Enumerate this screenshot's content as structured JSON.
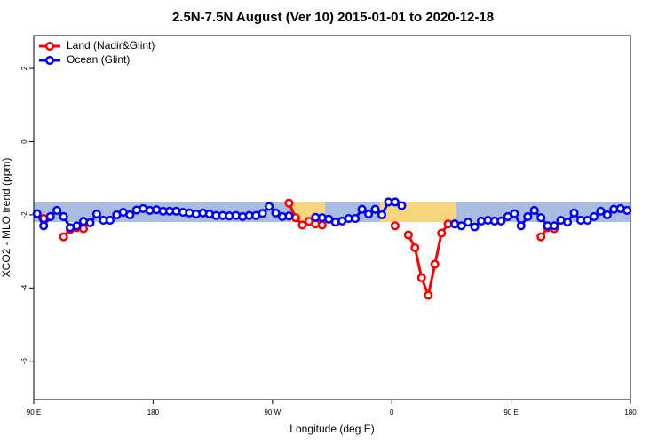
{
  "chart_data": {
    "type": "line",
    "title": "2.5N-7.5N August (Ver 10)   2015-01-01 to 2020-12-18",
    "x_label": "Longitude (deg E)",
    "y_label": "XCO2 - MLO trend (ppm)",
    "legend": "top-left",
    "xlim": [
      90,
      540
    ],
    "xticks": [
      {
        "value": 90,
        "label": "90 E"
      },
      180,
      {
        "value": 270,
        "label": "90 W"
      },
      {
        "value": 360,
        "label": "0"
      },
      {
        "value": 450,
        "label": "90 E"
      },
      {
        "value": 540,
        "label": "180"
      }
    ],
    "ylim": [
      -7.05,
      2.9
    ],
    "yticks": [
      -6,
      -4,
      -2,
      0,
      2
    ],
    "x": [
      92.5,
      97.5,
      102.5,
      107.5,
      112.5,
      117.5,
      122.5,
      127.5,
      132.5,
      137.5,
      142.5,
      147.5,
      152.5,
      157.5,
      162.5,
      167.5,
      172.5,
      177.5,
      182.5,
      187.5,
      192.5,
      197.5,
      202.5,
      207.5,
      212.5,
      217.5,
      222.5,
      227.5,
      232.5,
      237.5,
      242.5,
      247.5,
      252.5,
      257.5,
      262.5,
      267.5,
      272.5,
      277.5,
      282.5,
      287.5,
      292.5,
      297.5,
      302.5,
      307.5,
      312.5,
      317.5,
      322.5,
      327.5,
      332.5,
      337.5,
      342.5,
      347.5,
      352.5,
      357.5,
      362.5,
      367.5,
      372.5,
      377.5,
      382.5,
      387.5,
      392.5,
      397.5,
      402.5,
      407.5,
      412.5,
      417.5,
      422.5,
      427.5,
      432.5,
      437.5,
      442.5,
      447.5,
      452.5,
      457.5,
      462.5,
      467.5,
      472.5,
      477.5,
      482.5,
      487.5,
      492.5,
      497.5,
      502.5,
      507.5,
      512.5,
      517.5,
      522.5,
      527.5,
      532.5,
      537.5
    ],
    "series": [
      {
        "name": "Land (Nadir&Glint)",
        "color": "#ff0000",
        "values": [
          null,
          -2.1,
          null,
          null,
          -2.6,
          -2.4,
          -2.35,
          -2.38,
          null,
          null,
          null,
          null,
          null,
          null,
          null,
          null,
          null,
          null,
          null,
          null,
          null,
          null,
          null,
          null,
          null,
          null,
          null,
          null,
          null,
          null,
          null,
          null,
          null,
          null,
          null,
          null,
          null,
          null,
          -1.68,
          -2.08,
          -2.28,
          -2.18,
          -2.25,
          -2.28,
          null,
          null,
          null,
          null,
          null,
          null,
          null,
          null,
          null,
          null,
          -2.3,
          null,
          -2.55,
          -2.9,
          -3.72,
          -4.2,
          -3.35,
          -2.5,
          -2.25,
          -2.25,
          null,
          null,
          null,
          null,
          null,
          null,
          null,
          null,
          null,
          null,
          null,
          null,
          -2.6,
          -2.35,
          -2.38,
          null,
          null,
          null,
          null,
          null,
          null,
          null,
          null,
          null,
          null,
          null
        ]
      },
      {
        "name": "Ocean (Glint)",
        "color": "#0000ff",
        "values": [
          -1.97,
          -2.3,
          -2.05,
          -1.88,
          -2.05,
          -2.35,
          -2.3,
          -2.18,
          -2.22,
          -1.98,
          -2.15,
          -2.15,
          -2.0,
          -1.93,
          -2.0,
          -1.87,
          -1.83,
          -1.88,
          -1.86,
          -1.9,
          -1.9,
          -1.9,
          -1.93,
          -1.95,
          -1.98,
          -1.95,
          -1.98,
          -2.02,
          -2.02,
          -2.03,
          -2.02,
          -2.05,
          -2.02,
          -2.02,
          -1.96,
          -1.77,
          -1.95,
          -2.05,
          -2.03,
          null,
          null,
          null,
          -2.07,
          -2.08,
          -2.12,
          -2.2,
          -2.17,
          -2.1,
          -2.1,
          -1.85,
          -1.98,
          -1.85,
          -2.0,
          -1.65,
          -1.65,
          -1.75,
          null,
          null,
          null,
          null,
          null,
          null,
          null,
          -2.25,
          -2.3,
          -2.2,
          -2.33,
          -2.17,
          -2.15,
          -2.17,
          -2.17,
          -2.05,
          -1.97,
          -2.3,
          -2.05,
          -1.88,
          -2.08,
          -2.3,
          -2.3,
          -2.15,
          -2.2,
          -1.95,
          -2.15,
          -2.15,
          -2.05,
          -1.9,
          -2.0,
          -1.85,
          -1.83,
          -1.88
        ]
      }
    ]
  }
}
